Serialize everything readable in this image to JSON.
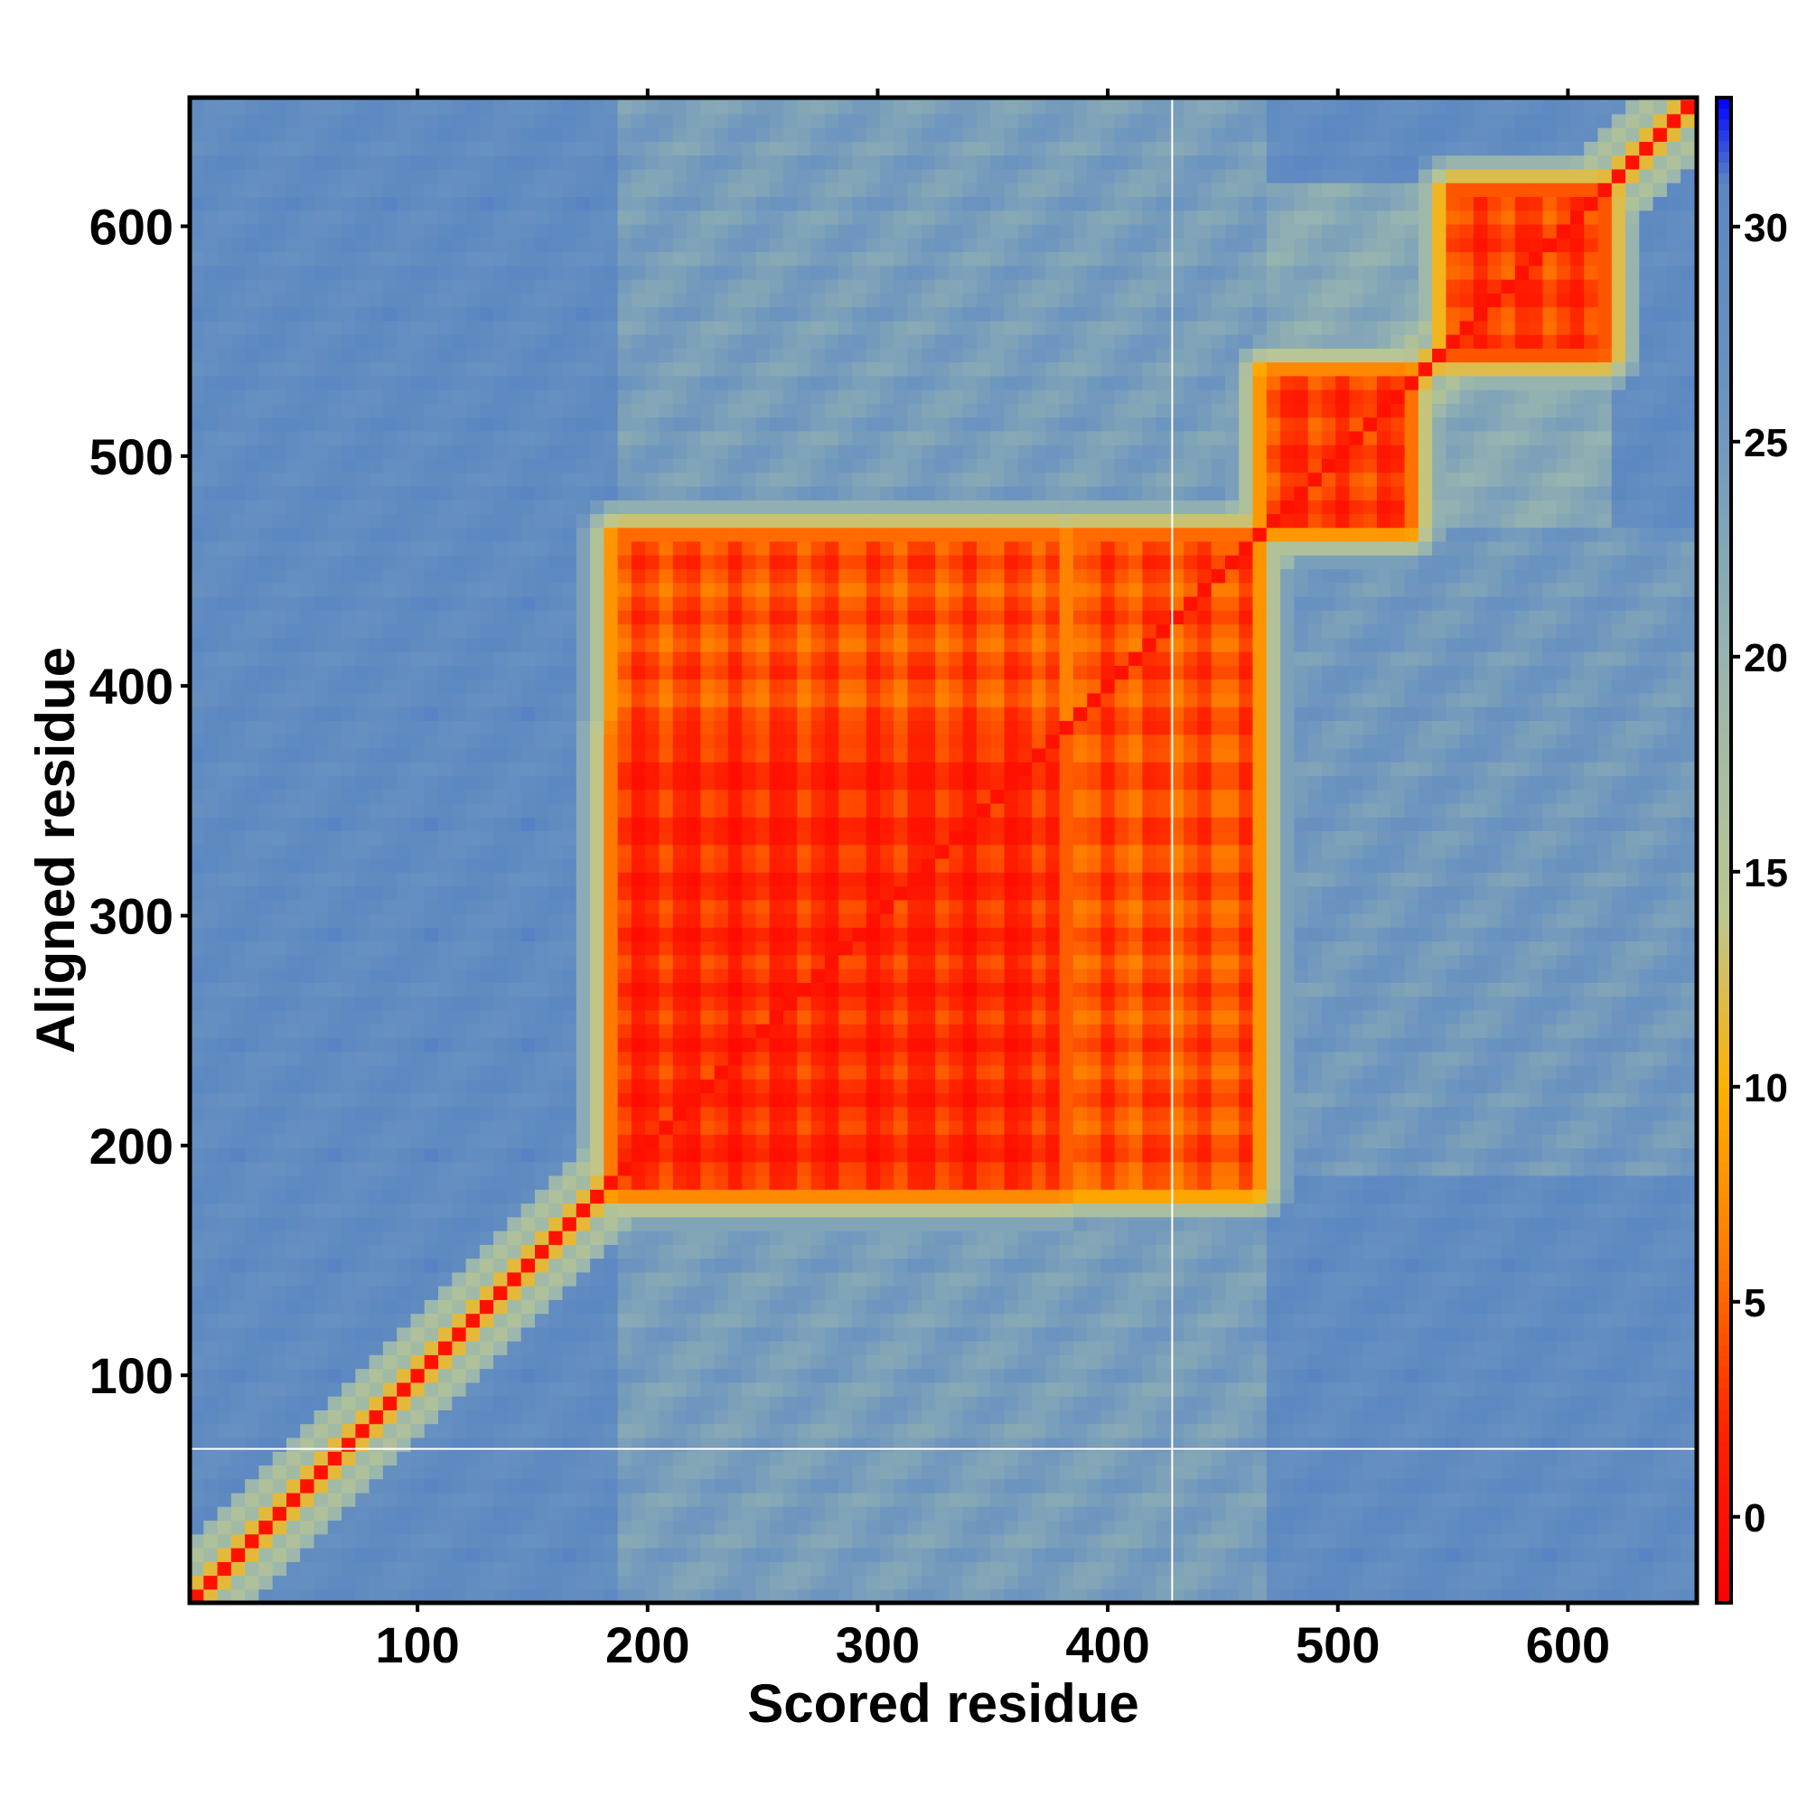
{
  "chart_data": {
    "type": "heatmap",
    "title": "",
    "xlabel": "Scored residue",
    "ylabel": "Aligned residue",
    "xlim": [
      1,
      656
    ],
    "ylim": [
      1,
      656
    ],
    "x_ticks": [
      100,
      200,
      300,
      400,
      500,
      600
    ],
    "y_ticks": [
      100,
      200,
      300,
      400,
      500,
      600
    ],
    "colorbar": {
      "range": [
        -2,
        33
      ],
      "ticks": [
        0,
        5,
        10,
        15,
        20,
        25,
        30
      ],
      "stops": [
        {
          "value": -2,
          "color": "#ff0000"
        },
        {
          "value": 2,
          "color": "#ff2200"
        },
        {
          "value": 6,
          "color": "#ff7a00"
        },
        {
          "value": 10,
          "color": "#ffb000"
        },
        {
          "value": 14,
          "color": "#bcc790"
        },
        {
          "value": 20,
          "color": "#96b4b0"
        },
        {
          "value": 26,
          "color": "#6a93c0"
        },
        {
          "value": 31,
          "color": "#5b87c2"
        },
        {
          "value": 33,
          "color": "#0000ff"
        }
      ]
    },
    "description_regions": {
      "diagonal": {
        "value": 0
      },
      "diagonal_band_value": 5,
      "domain_blocks": [
        {
          "x": [
            187,
            380
          ],
          "y": [
            182,
            380
          ],
          "value": 2
        },
        {
          "x": [
            187,
            380
          ],
          "y": [
            382,
            465
          ],
          "value": 4
        },
        {
          "x": [
            387,
            463
          ],
          "y": [
            182,
            465
          ],
          "value": 4
        },
        {
          "x": [
            470,
            530
          ],
          "y": [
            470,
            535
          ],
          "value": 3
        },
        {
          "x": [
            550,
            615
          ],
          "y": [
            545,
            615
          ],
          "value": 3
        }
      ],
      "background_value": 29,
      "intermediate_value": 20
    }
  }
}
